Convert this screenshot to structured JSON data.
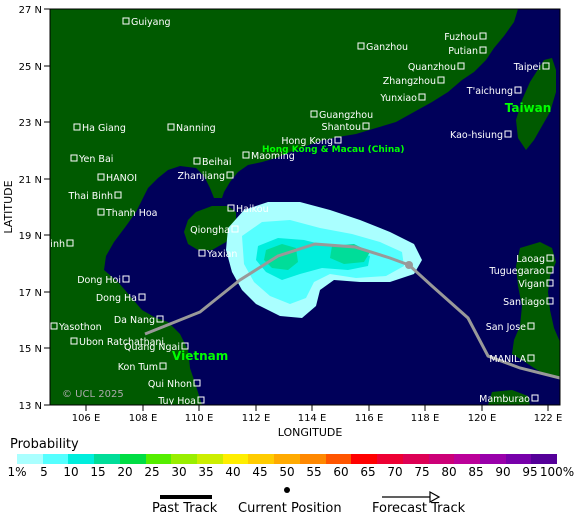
{
  "map": {
    "lat_labels": [
      "27 N",
      "25 N",
      "23 N",
      "21 N",
      "19 N",
      "17 N",
      "15 N",
      "13 N"
    ],
    "lon_labels": [
      "106 E",
      "108 E",
      "110 E",
      "112 E",
      "114 E",
      "116 E",
      "118 E",
      "120 E",
      "122 E"
    ],
    "xlabel": "LONGITUDE",
    "ylabel": "LATITUDE",
    "copyright": "© UCL 2025",
    "colors": {
      "ocean": "#00005a",
      "land": "#005a00",
      "track": "#999999"
    },
    "cities": [
      {
        "name": "Guiyang"
      },
      {
        "name": "Ganzhou"
      },
      {
        "name": "Fuzhou"
      },
      {
        "name": "Putian"
      },
      {
        "name": "Quanzhou"
      },
      {
        "name": "Zhangzhou"
      },
      {
        "name": "Taipei"
      },
      {
        "name": "Yunxiao"
      },
      {
        "name": "T'aichung"
      },
      {
        "name": "Ha Giang"
      },
      {
        "name": "Nanning"
      },
      {
        "name": "Guangzhou"
      },
      {
        "name": "Shantou"
      },
      {
        "name": "Kao-hsiung"
      },
      {
        "name": "Hong Kong"
      },
      {
        "name": "Maoming"
      },
      {
        "name": "Yen Bai"
      },
      {
        "name": "Beihai"
      },
      {
        "name": "HANOI"
      },
      {
        "name": "Zhanjiang"
      },
      {
        "name": "Thai Binh"
      },
      {
        "name": "Haikou"
      },
      {
        "name": "Thanh Hoa"
      },
      {
        "name": "Qiongha"
      },
      {
        "name": "Vinh"
      },
      {
        "name": "Yaxian"
      },
      {
        "name": "Laoag"
      },
      {
        "name": "Dong Hoi"
      },
      {
        "name": "Tuguegarao"
      },
      {
        "name": "Vigan"
      },
      {
        "name": "Dong Ha"
      },
      {
        "name": "Santiago"
      },
      {
        "name": "Da Nang"
      },
      {
        "name": "San Jose"
      },
      {
        "name": "Yasothon"
      },
      {
        "name": "Ubon Ratchathani"
      },
      {
        "name": "Quang Ngai"
      },
      {
        "name": "MANILA"
      },
      {
        "name": "Kon Tum"
      },
      {
        "name": "Qui Nhon"
      },
      {
        "name": "Tuy Hoa"
      },
      {
        "name": "Mamburao"
      }
    ],
    "regions": [
      {
        "name": "Hong Kong & Macau (China)"
      },
      {
        "name": "Taiwan"
      },
      {
        "name": "Vietnam"
      }
    ]
  },
  "legend": {
    "title": "Probability",
    "colorbar_colors": [
      "#aaffff",
      "#55ffff",
      "#00eedd",
      "#00dd99",
      "#00dd44",
      "#55ee00",
      "#99ee00",
      "#ccee00",
      "#ffee00",
      "#ffcc00",
      "#ffaa00",
      "#ff8800",
      "#ff5500",
      "#ff0000",
      "#ee0033",
      "#dd0055",
      "#cc0077",
      "#bb0099",
      "#9900aa",
      "#7700aa",
      "#550099"
    ],
    "colorbar_labels": [
      "1%",
      "5",
      "10",
      "15",
      "20",
      "25",
      "30",
      "35",
      "40",
      "45",
      "50",
      "55",
      "60",
      "65",
      "70",
      "75",
      "80",
      "85",
      "90",
      "95",
      "100%"
    ],
    "past_track": "Past Track",
    "current_position": "Current Position",
    "forecast_track": "Forecast Track"
  }
}
